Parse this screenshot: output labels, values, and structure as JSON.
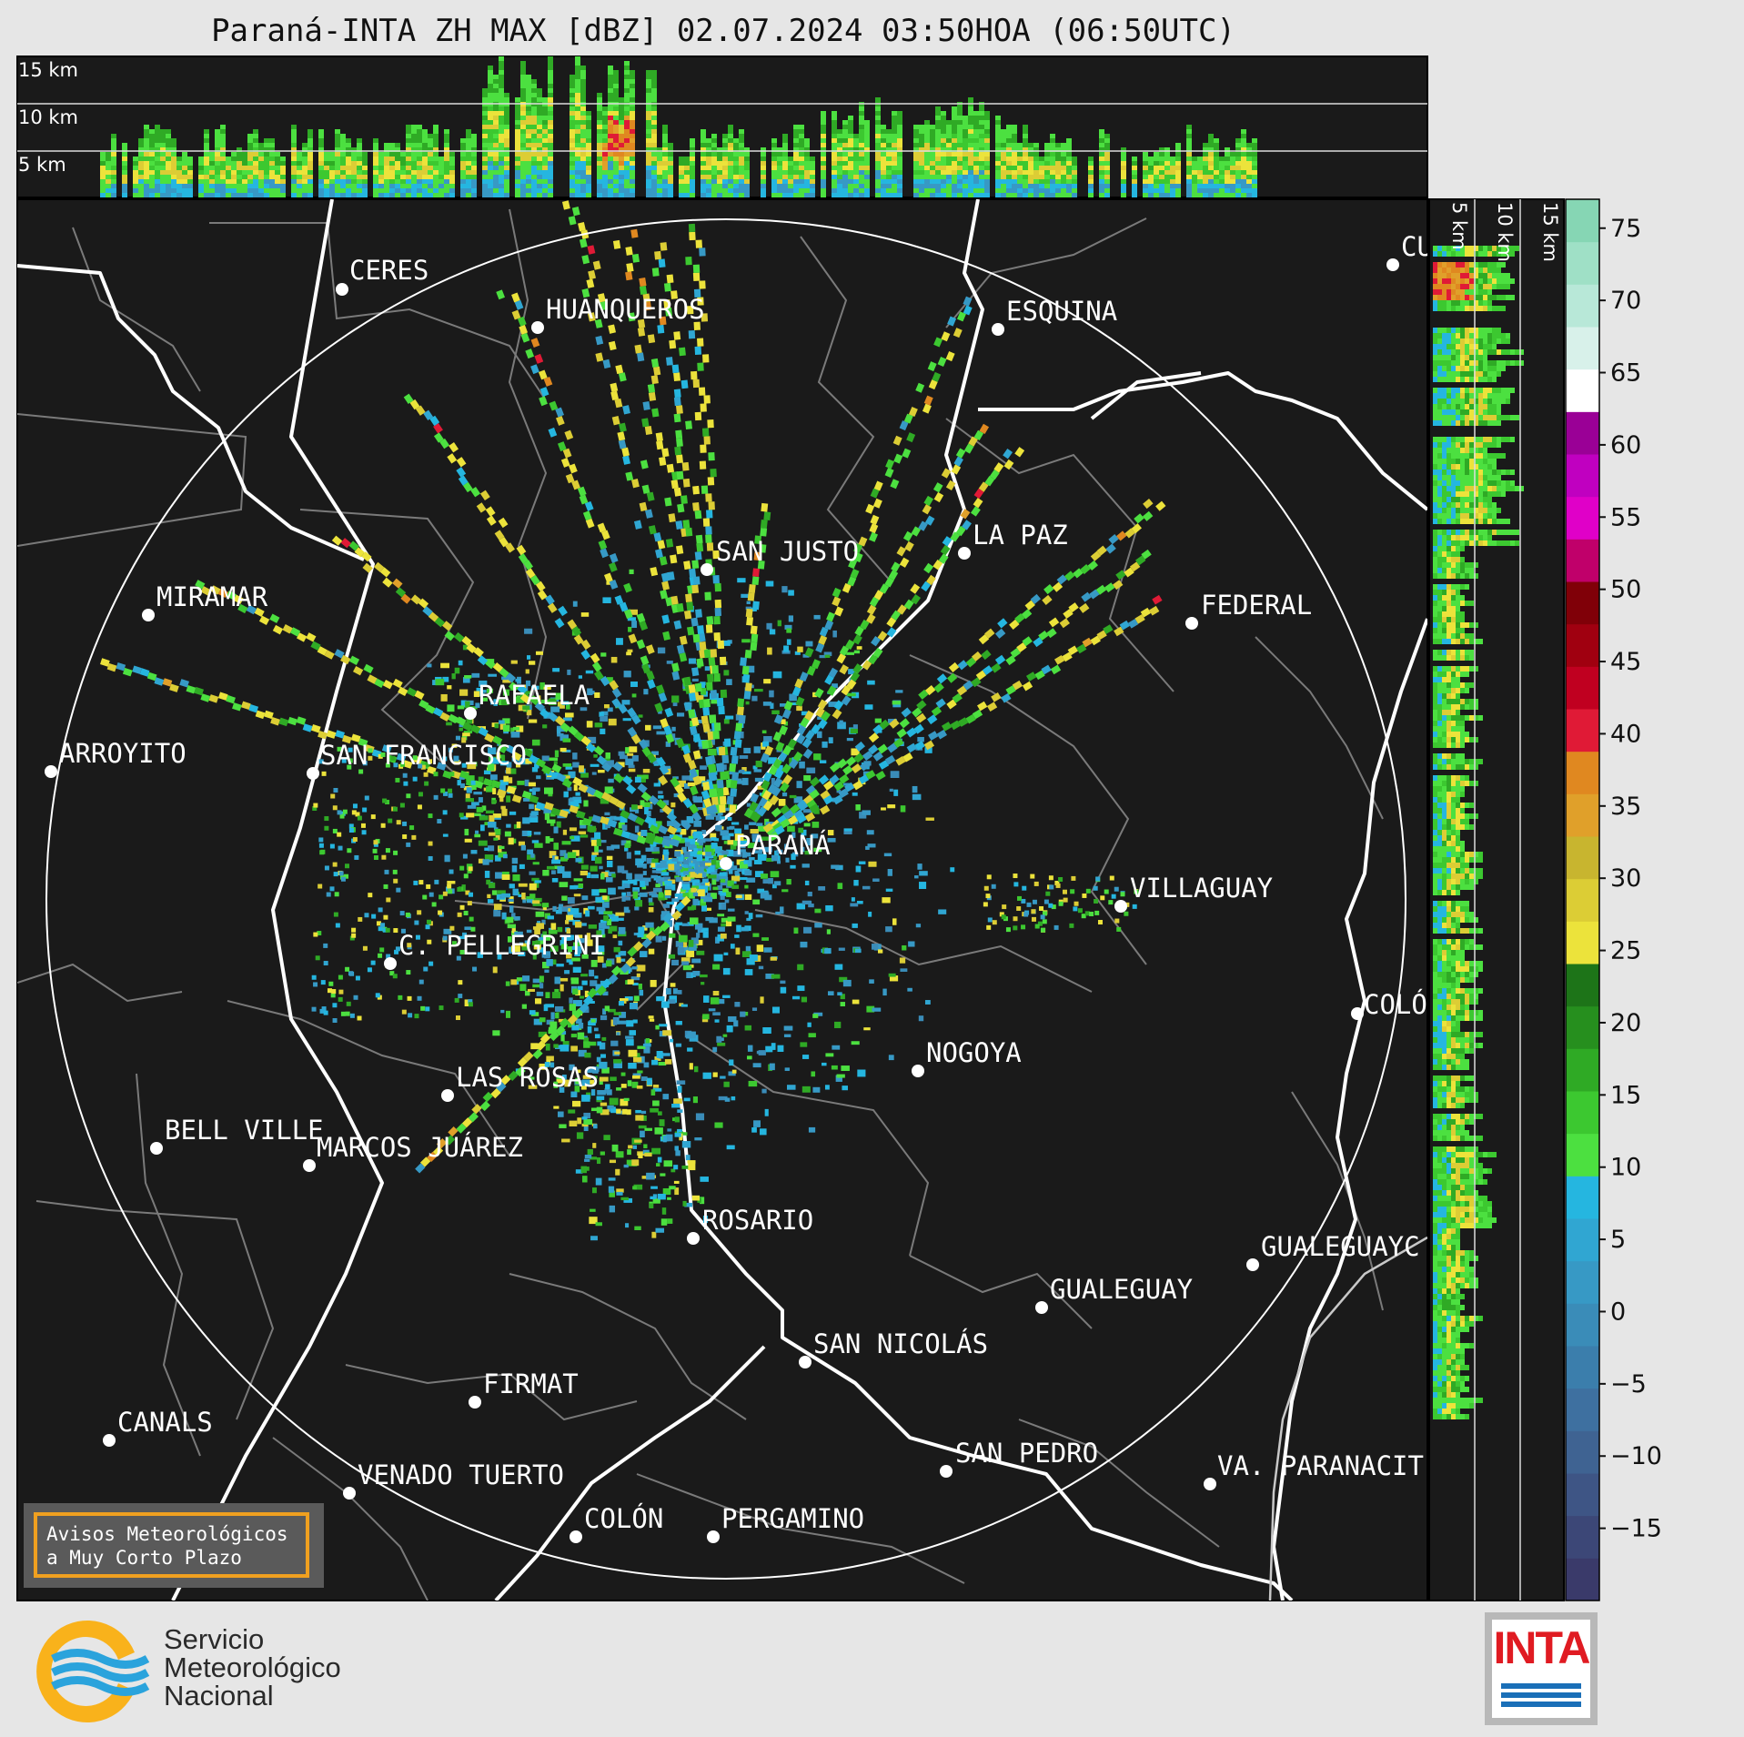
{
  "title": "Paraná-INTA ZH MAX [dBZ] 02.07.2024 03:50HOA (06:50UTC)",
  "top_panel": {
    "height_labels": [
      "15 km",
      "10 km",
      "5 km"
    ]
  },
  "side_panel": {
    "height_labels": [
      "5 km",
      "10 km",
      "15 km"
    ]
  },
  "colorbar": {
    "ticks": [
      "75",
      "70",
      "65",
      "60",
      "55",
      "50",
      "45",
      "40",
      "35",
      "30",
      "25",
      "20",
      "15",
      "10",
      "5",
      "0",
      "−5",
      "−10",
      "−15"
    ],
    "colors": [
      "#3a3a6a",
      "#3c4777",
      "#3e5585",
      "#3f6392",
      "#3e70a0",
      "#3b7eac",
      "#3a8cb8",
      "#3799c5",
      "#30a6d2",
      "#25b6e0",
      "#4ce040",
      "#3cc830",
      "#2faa25",
      "#268f1e",
      "#1d7418",
      "#ece33b",
      "#dccd35",
      "#c8b52f",
      "#e0a02a",
      "#e08820",
      "#e01a36",
      "#c00020",
      "#a00010",
      "#800008",
      "#c0006a",
      "#e000c8",
      "#c000c0",
      "#9a0096",
      "#ffffff",
      "#d8f1ea",
      "#b8e8d8",
      "#9fe0c6",
      "#86d6b4"
    ],
    "min": -20,
    "max": 77
  },
  "cities": [
    {
      "name": "CERES"
    },
    {
      "name": "HUANQUEROS"
    },
    {
      "name": "ESQUINA"
    },
    {
      "name": "CU"
    },
    {
      "name": "MIRAMAR"
    },
    {
      "name": "SAN JUSTO"
    },
    {
      "name": "LA PAZ"
    },
    {
      "name": "FEDERAL"
    },
    {
      "name": "RAFAELA"
    },
    {
      "name": "ARROYITO"
    },
    {
      "name": "SAN FRANCISCO"
    },
    {
      "name": "PARANÁ"
    },
    {
      "name": "VILLAGUAY"
    },
    {
      "name": "C. PELLEGRINI"
    },
    {
      "name": "COLÓ"
    },
    {
      "name": "NOGOYA"
    },
    {
      "name": "LAS ROSAS"
    },
    {
      "name": "BELL VILLE"
    },
    {
      "name": "MARCOS JUÁREZ"
    },
    {
      "name": "ROSARIO"
    },
    {
      "name": "GUALEGUAYC"
    },
    {
      "name": "GUALEGUAY"
    },
    {
      "name": "SAN NICOLÁS"
    },
    {
      "name": "FIRMAT"
    },
    {
      "name": "CANALS"
    },
    {
      "name": "SAN PEDRO"
    },
    {
      "name": "VA. PARANACIT"
    },
    {
      "name": "VENADO TUERTO"
    },
    {
      "name": "COLÓN"
    },
    {
      "name": "PERGAMINO"
    }
  ],
  "notice": {
    "line1": "Avisos Meteorológicos",
    "line2": "a Muy Corto Plazo"
  },
  "logos": {
    "smn": {
      "line1": "Servicio",
      "line2": "Meteorológico",
      "line3": "Nacional"
    },
    "inta": "INTA"
  }
}
